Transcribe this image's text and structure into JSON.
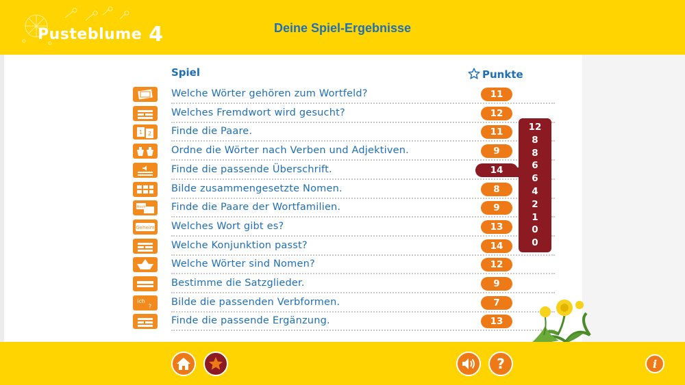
{
  "header": {
    "logo_text": "Pusteblume",
    "logo_number": "4",
    "title": "Deine Spiel-Ergebnisse"
  },
  "table": {
    "col_game": "Spiel",
    "col_points": "Punkte",
    "rows": [
      {
        "icon": "word-field-icon",
        "label": "Welche Wörter gehören zum Wortfeld?",
        "points": "11",
        "highlight": false
      },
      {
        "icon": "text-gaps-icon",
        "label": "Welches Fremdwort wird gesucht?",
        "points": "12",
        "highlight": false
      },
      {
        "icon": "pair-cards-icon",
        "label": "Finde die Paare.",
        "points": "11",
        "highlight": false
      },
      {
        "icon": "baskets-icon",
        "label": "Ordne die Wörter nach Verben und Adjektiven.",
        "points": "9",
        "highlight": false
      },
      {
        "icon": "speaker-lines-icon",
        "label": "Finde die passende Überschrift.",
        "points": "14",
        "highlight": true
      },
      {
        "icon": "word-grid-icon",
        "label": "Bilde zusammengesetzte Nomen.",
        "points": "8",
        "highlight": false
      },
      {
        "icon": "word-family-cards-icon",
        "label": "Finde die Paare der Wortfamilien.",
        "points": "9",
        "highlight": false
      },
      {
        "icon": "geheim-word-icon",
        "label": "Welches Wort gibt es?",
        "points": "13",
        "highlight": false
      },
      {
        "icon": "text-gaps-icon",
        "label": "Welche Konjunktion passt?",
        "points": "14",
        "highlight": false
      },
      {
        "icon": "paper-boat-icon",
        "label": "Welche Wörter sind Nomen?",
        "points": "12",
        "highlight": false
      },
      {
        "icon": "sentence-parts-icon",
        "label": "Bestimme die Satzglieder.",
        "points": "9",
        "highlight": false
      },
      {
        "icon": "ich-verb-icon",
        "label": "Bilde die passenden Verbformen.",
        "points": "7",
        "highlight": false
      },
      {
        "icon": "text-gaps-icon",
        "label": "Finde die passende Ergänzung.",
        "points": "13",
        "highlight": false
      }
    ]
  },
  "history": [
    "12",
    "8",
    "8",
    "6",
    "6",
    "4",
    "2",
    "1",
    "0",
    "0"
  ],
  "footer": {
    "home": "home-icon",
    "results": "star-icon",
    "sound": "speaker-icon",
    "help": "question-icon",
    "info": "info-icon"
  },
  "colors": {
    "yellow": "#ffd400",
    "orange": "#ee7a17",
    "dark_red": "#8b1a22",
    "blue": "#1f6fb6"
  }
}
